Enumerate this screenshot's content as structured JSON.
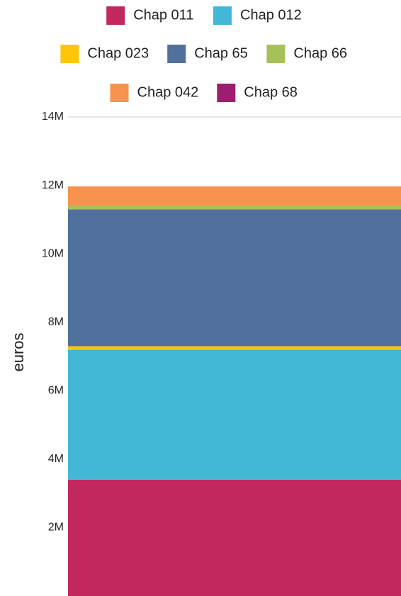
{
  "chart_data": {
    "type": "bar",
    "stacked": true,
    "categories": [
      ""
    ],
    "series": [
      {
        "name": "Chap 011",
        "values": [
          3400000
        ],
        "color": "#C2285E"
      },
      {
        "name": "Chap 012",
        "values": [
          3800000
        ],
        "color": "#42B8D6"
      },
      {
        "name": "Chap 023",
        "values": [
          100000
        ],
        "color": "#FDC60A"
      },
      {
        "name": "Chap 65",
        "values": [
          4000000
        ],
        "color": "#51709B"
      },
      {
        "name": "Chap 66",
        "values": [
          110000
        ],
        "color": "#A6C15A"
      },
      {
        "name": "Chap 042",
        "values": [
          560000
        ],
        "color": "#F7924F"
      },
      {
        "name": "Chap 68",
        "values": [
          0
        ],
        "color": "#9B1F6E"
      }
    ],
    "legend_rows": [
      [
        "Chap 011",
        "Chap 012"
      ],
      [
        "Chap 023",
        "Chap 65",
        "Chap 66"
      ],
      [
        "Chap 042",
        "Chap 68"
      ]
    ],
    "ylabel": "euros",
    "ylim": [
      0,
      14000000
    ],
    "yticks": [
      {
        "value": 2000000,
        "label": "2M"
      },
      {
        "value": 4000000,
        "label": "4M"
      },
      {
        "value": 6000000,
        "label": "6M"
      },
      {
        "value": 8000000,
        "label": "8M"
      },
      {
        "value": 10000000,
        "label": "10M"
      },
      {
        "value": 12000000,
        "label": "12M"
      },
      {
        "value": 14000000,
        "label": "14M"
      }
    ],
    "legend_position": "top",
    "grid": false
  }
}
